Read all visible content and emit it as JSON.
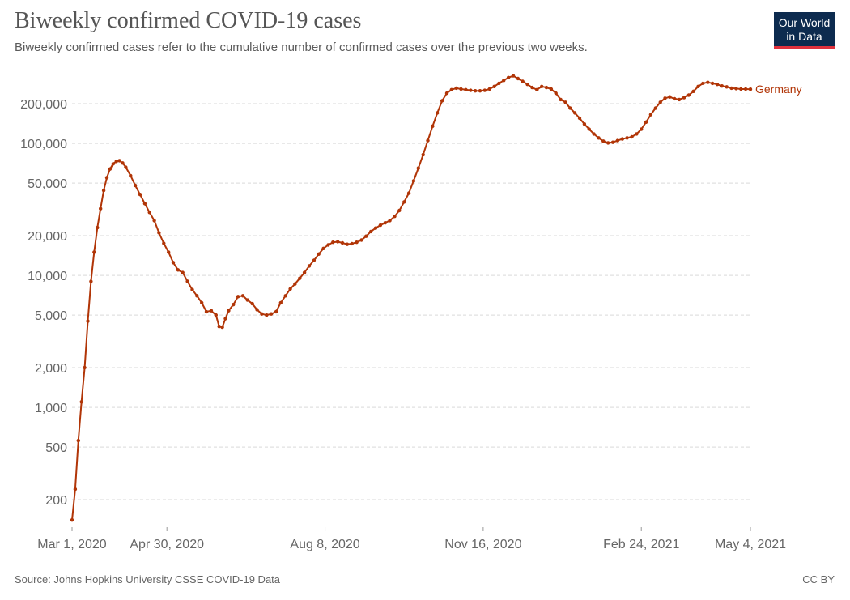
{
  "header": {
    "title": "Biweekly confirmed COVID-19 cases",
    "subtitle": "Biweekly confirmed cases refer to the cumulative number of confirmed cases over the previous two weeks."
  },
  "logo": {
    "line1": "Our World",
    "line2": "in Data"
  },
  "footer": {
    "source": "Source: Johns Hopkins University CSSE COVID-19 Data",
    "license": "CC BY"
  },
  "chart_data": {
    "type": "line",
    "title": "Biweekly confirmed COVID-19 cases",
    "y_scale": "log",
    "ylim": [
      140,
      330000
    ],
    "xlim": [
      "2020-03-01",
      "2021-05-04"
    ],
    "grid": true,
    "y_ticks": [
      {
        "value": 200,
        "label": "200"
      },
      {
        "value": 500,
        "label": "500"
      },
      {
        "value": 1000,
        "label": "1,000"
      },
      {
        "value": 2000,
        "label": "2,000"
      },
      {
        "value": 5000,
        "label": "5,000"
      },
      {
        "value": 10000,
        "label": "10,000"
      },
      {
        "value": 20000,
        "label": "20,000"
      },
      {
        "value": 50000,
        "label": "50,000"
      },
      {
        "value": 100000,
        "label": "100,000"
      },
      {
        "value": 200000,
        "label": "200,000"
      }
    ],
    "x_ticks": [
      {
        "date": "2020-03-01",
        "label": "Mar 1, 2020"
      },
      {
        "date": "2020-04-30",
        "label": "Apr 30, 2020"
      },
      {
        "date": "2020-08-08",
        "label": "Aug 8, 2020"
      },
      {
        "date": "2020-11-16",
        "label": "Nov 16, 2020"
      },
      {
        "date": "2021-02-24",
        "label": "Feb 24, 2021"
      },
      {
        "date": "2021-05-04",
        "label": "May 4, 2021"
      }
    ],
    "series": [
      {
        "name": "Germany",
        "color": "#b13507",
        "points": [
          [
            "2020-03-01",
            140
          ],
          [
            "2020-03-03",
            240
          ],
          [
            "2020-03-05",
            560
          ],
          [
            "2020-03-07",
            1100
          ],
          [
            "2020-03-09",
            2000
          ],
          [
            "2020-03-11",
            4500
          ],
          [
            "2020-03-13",
            9000
          ],
          [
            "2020-03-15",
            15000
          ],
          [
            "2020-03-17",
            23000
          ],
          [
            "2020-03-19",
            32000
          ],
          [
            "2020-03-21",
            44000
          ],
          [
            "2020-03-23",
            55000
          ],
          [
            "2020-03-25",
            64000
          ],
          [
            "2020-03-27",
            70000
          ],
          [
            "2020-03-29",
            73000
          ],
          [
            "2020-03-31",
            74000
          ],
          [
            "2020-04-02",
            71000
          ],
          [
            "2020-04-04",
            66000
          ],
          [
            "2020-04-07",
            57000
          ],
          [
            "2020-04-10",
            48000
          ],
          [
            "2020-04-13",
            41000
          ],
          [
            "2020-04-16",
            35000
          ],
          [
            "2020-04-19",
            30000
          ],
          [
            "2020-04-22",
            26000
          ],
          [
            "2020-04-25",
            21000
          ],
          [
            "2020-04-28",
            17500
          ],
          [
            "2020-05-01",
            15000
          ],
          [
            "2020-05-04",
            12500
          ],
          [
            "2020-05-07",
            11000
          ],
          [
            "2020-05-10",
            10500
          ],
          [
            "2020-05-13",
            9000
          ],
          [
            "2020-05-16",
            7800
          ],
          [
            "2020-05-19",
            7000
          ],
          [
            "2020-05-22",
            6200
          ],
          [
            "2020-05-25",
            5300
          ],
          [
            "2020-05-28",
            5400
          ],
          [
            "2020-05-31",
            5000
          ],
          [
            "2020-06-02",
            4100
          ],
          [
            "2020-06-04",
            4050
          ],
          [
            "2020-06-06",
            4700
          ],
          [
            "2020-06-08",
            5400
          ],
          [
            "2020-06-11",
            6000
          ],
          [
            "2020-06-14",
            6900
          ],
          [
            "2020-06-17",
            7000
          ],
          [
            "2020-06-20",
            6500
          ],
          [
            "2020-06-23",
            6100
          ],
          [
            "2020-06-26",
            5500
          ],
          [
            "2020-06-29",
            5100
          ],
          [
            "2020-07-02",
            5000
          ],
          [
            "2020-07-05",
            5100
          ],
          [
            "2020-07-08",
            5300
          ],
          [
            "2020-07-11",
            6200
          ],
          [
            "2020-07-14",
            7000
          ],
          [
            "2020-07-17",
            7900
          ],
          [
            "2020-07-20",
            8600
          ],
          [
            "2020-07-23",
            9500
          ],
          [
            "2020-07-26",
            10500
          ],
          [
            "2020-07-29",
            11800
          ],
          [
            "2020-08-01",
            13000
          ],
          [
            "2020-08-04",
            14500
          ],
          [
            "2020-08-07",
            16000
          ],
          [
            "2020-08-10",
            17000
          ],
          [
            "2020-08-13",
            17800
          ],
          [
            "2020-08-16",
            18000
          ],
          [
            "2020-08-19",
            17600
          ],
          [
            "2020-08-22",
            17200
          ],
          [
            "2020-08-25",
            17400
          ],
          [
            "2020-08-28",
            17800
          ],
          [
            "2020-08-31",
            18500
          ],
          [
            "2020-09-03",
            19800
          ],
          [
            "2020-09-06",
            21500
          ],
          [
            "2020-09-09",
            22800
          ],
          [
            "2020-09-12",
            24000
          ],
          [
            "2020-09-15",
            25000
          ],
          [
            "2020-09-18",
            26000
          ],
          [
            "2020-09-21",
            28000
          ],
          [
            "2020-09-24",
            31000
          ],
          [
            "2020-09-27",
            36000
          ],
          [
            "2020-09-30",
            42000
          ],
          [
            "2020-10-03",
            52000
          ],
          [
            "2020-10-06",
            65000
          ],
          [
            "2020-10-09",
            82000
          ],
          [
            "2020-10-12",
            105000
          ],
          [
            "2020-10-15",
            135000
          ],
          [
            "2020-10-18",
            170000
          ],
          [
            "2020-10-21",
            210000
          ],
          [
            "2020-10-24",
            240000
          ],
          [
            "2020-10-27",
            255000
          ],
          [
            "2020-10-30",
            262000
          ],
          [
            "2020-11-02",
            258000
          ],
          [
            "2020-11-05",
            255000
          ],
          [
            "2020-11-08",
            252000
          ],
          [
            "2020-11-11",
            250000
          ],
          [
            "2020-11-14",
            250000
          ],
          [
            "2020-11-17",
            252000
          ],
          [
            "2020-11-20",
            258000
          ],
          [
            "2020-11-23",
            270000
          ],
          [
            "2020-11-26",
            285000
          ],
          [
            "2020-11-29",
            300000
          ],
          [
            "2020-12-02",
            315000
          ],
          [
            "2020-12-05",
            325000
          ],
          [
            "2020-12-08",
            310000
          ],
          [
            "2020-12-11",
            295000
          ],
          [
            "2020-12-14",
            280000
          ],
          [
            "2020-12-17",
            265000
          ],
          [
            "2020-12-20",
            255000
          ],
          [
            "2020-12-23",
            270000
          ],
          [
            "2020-12-26",
            265000
          ],
          [
            "2020-12-29",
            258000
          ],
          [
            "2021-01-01",
            240000
          ],
          [
            "2021-01-04",
            215000
          ],
          [
            "2021-01-07",
            205000
          ],
          [
            "2021-01-10",
            185000
          ],
          [
            "2021-01-13",
            170000
          ],
          [
            "2021-01-16",
            155000
          ],
          [
            "2021-01-19",
            140000
          ],
          [
            "2021-01-22",
            128000
          ],
          [
            "2021-01-25",
            118000
          ],
          [
            "2021-01-28",
            110000
          ],
          [
            "2021-01-31",
            104000
          ],
          [
            "2021-02-03",
            101000
          ],
          [
            "2021-02-06",
            102000
          ],
          [
            "2021-02-09",
            105000
          ],
          [
            "2021-02-12",
            108000
          ],
          [
            "2021-02-15",
            110000
          ],
          [
            "2021-02-18",
            112000
          ],
          [
            "2021-02-21",
            118000
          ],
          [
            "2021-02-24",
            128000
          ],
          [
            "2021-02-27",
            145000
          ],
          [
            "2021-03-02",
            165000
          ],
          [
            "2021-03-05",
            185000
          ],
          [
            "2021-03-08",
            205000
          ],
          [
            "2021-03-11",
            220000
          ],
          [
            "2021-03-14",
            225000
          ],
          [
            "2021-03-17",
            218000
          ],
          [
            "2021-03-20",
            215000
          ],
          [
            "2021-03-23",
            222000
          ],
          [
            "2021-03-26",
            232000
          ],
          [
            "2021-03-29",
            248000
          ],
          [
            "2021-04-01",
            270000
          ],
          [
            "2021-04-04",
            285000
          ],
          [
            "2021-04-07",
            290000
          ],
          [
            "2021-04-10",
            285000
          ],
          [
            "2021-04-13",
            280000
          ],
          [
            "2021-04-16",
            272000
          ],
          [
            "2021-04-19",
            268000
          ],
          [
            "2021-04-22",
            262000
          ],
          [
            "2021-04-25",
            260000
          ],
          [
            "2021-04-28",
            258000
          ],
          [
            "2021-05-01",
            258000
          ],
          [
            "2021-05-04",
            257000
          ]
        ]
      }
    ]
  }
}
